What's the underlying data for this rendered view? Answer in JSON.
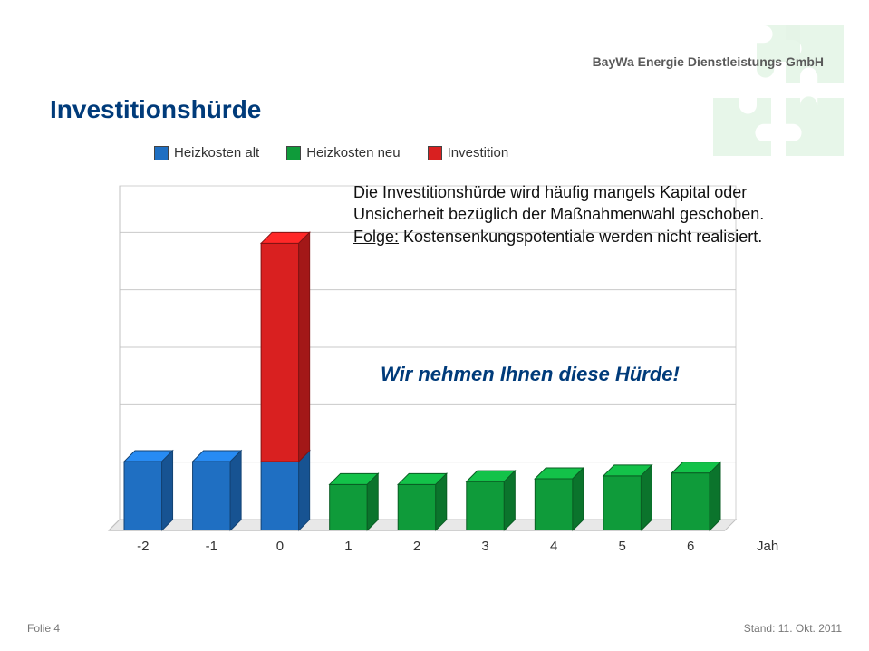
{
  "header": {
    "company": "BayWa Energie Dienstleistungs GmbH"
  },
  "title": "Investitionshürde",
  "legend": {
    "items": [
      {
        "label": "Heizkosten alt",
        "color": "#1f6fc2"
      },
      {
        "label": "Heizkosten neu",
        "color": "#0f9b3a"
      },
      {
        "label": "Investition",
        "color": "#d92020"
      }
    ]
  },
  "info": {
    "line1": "Die Investitionshürde wird häufig mangels Kapital oder Unsicherheit bezüglich der Maßnahmenwahl geschoben.",
    "consequence_label": "Folge:",
    "consequence_text": " Kostensenkungspotentiale werden nicht realisiert."
  },
  "callout": "Wir nehmen Ihnen diese Hürde!",
  "chart": {
    "type": "bar",
    "categories": [
      "-2",
      "-1",
      "0",
      "1",
      "2",
      "3",
      "4",
      "5",
      "6"
    ],
    "x_axis_label": "Jahre",
    "ylim": [
      0,
      60
    ],
    "gridlines": [
      10,
      20,
      30,
      40,
      50,
      60
    ],
    "grid_color": "#c9c9c9",
    "plot_bg": "#ffffff",
    "plot_floor": "#e8e8e8",
    "bars": [
      {
        "segments": [
          {
            "value": 12,
            "color": "#1f6fc2"
          }
        ]
      },
      {
        "segments": [
          {
            "value": 12,
            "color": "#1f6fc2"
          }
        ]
      },
      {
        "segments": [
          {
            "value": 12,
            "color": "#1f6fc2"
          },
          {
            "value": 38,
            "color": "#d92020"
          }
        ]
      },
      {
        "segments": [
          {
            "value": 8,
            "color": "#0f9b3a"
          }
        ]
      },
      {
        "segments": [
          {
            "value": 8,
            "color": "#0f9b3a"
          }
        ]
      },
      {
        "segments": [
          {
            "value": 8.5,
            "color": "#0f9b3a"
          }
        ]
      },
      {
        "segments": [
          {
            "value": 9,
            "color": "#0f9b3a"
          }
        ]
      },
      {
        "segments": [
          {
            "value": 9.5,
            "color": "#0f9b3a"
          }
        ]
      },
      {
        "segments": [
          {
            "value": 10,
            "color": "#0f9b3a"
          }
        ]
      }
    ],
    "bar_width_ratio": 0.55,
    "depth": 12,
    "axis_label_fontsize": 15,
    "axis_label_color": "#333333"
  },
  "footer": {
    "left_prefix": "Folie ",
    "page": "4",
    "right": "Stand: 11. Okt. 2011"
  },
  "puzzle": {
    "colors": [
      "#2aa83a",
      "#2aa83a",
      "#2aa83a",
      "#2aa83a"
    ]
  }
}
